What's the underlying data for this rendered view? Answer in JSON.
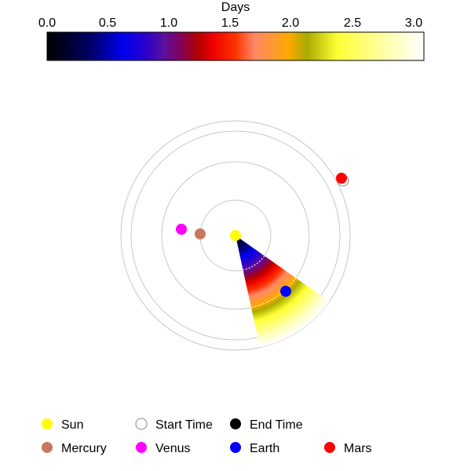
{
  "colorbar": {
    "title": "Days",
    "ticks": [
      "0.0",
      "0.5",
      "1.0",
      "1.5",
      "2.0",
      "2.5",
      "3.0"
    ],
    "tick_values": [
      0.0,
      0.5,
      1.0,
      1.5,
      2.0,
      2.5,
      3.0
    ],
    "range": [
      0.0,
      3.0
    ],
    "colormap": [
      "#000000",
      "#000033",
      "#00006e",
      "#0000ee",
      "#2a00cc",
      "#5a10a0",
      "#8a0050",
      "#b00000",
      "#ee0000",
      "#ff3300",
      "#ff8866",
      "#ff9933",
      "#ffaa00",
      "#aaaa00",
      "#ffff33",
      "#ffff99",
      "#ffffff"
    ]
  },
  "legend": {
    "items": [
      {
        "label": "Sun",
        "color": "#ffff00",
        "style": "filled"
      },
      {
        "label": "Start Time",
        "color": "#ffffff",
        "style": "hollow"
      },
      {
        "label": "End Time",
        "color": "#000000",
        "style": "filled"
      },
      {
        "label": "Mercury",
        "color": "#c87860",
        "style": "filled"
      },
      {
        "label": "Venus",
        "color": "#ff00ff",
        "style": "filled"
      },
      {
        "label": "Earth",
        "color": "#0000ff",
        "style": "filled"
      },
      {
        "label": "Mars",
        "color": "#ff0000",
        "style": "filled"
      }
    ]
  }
}
